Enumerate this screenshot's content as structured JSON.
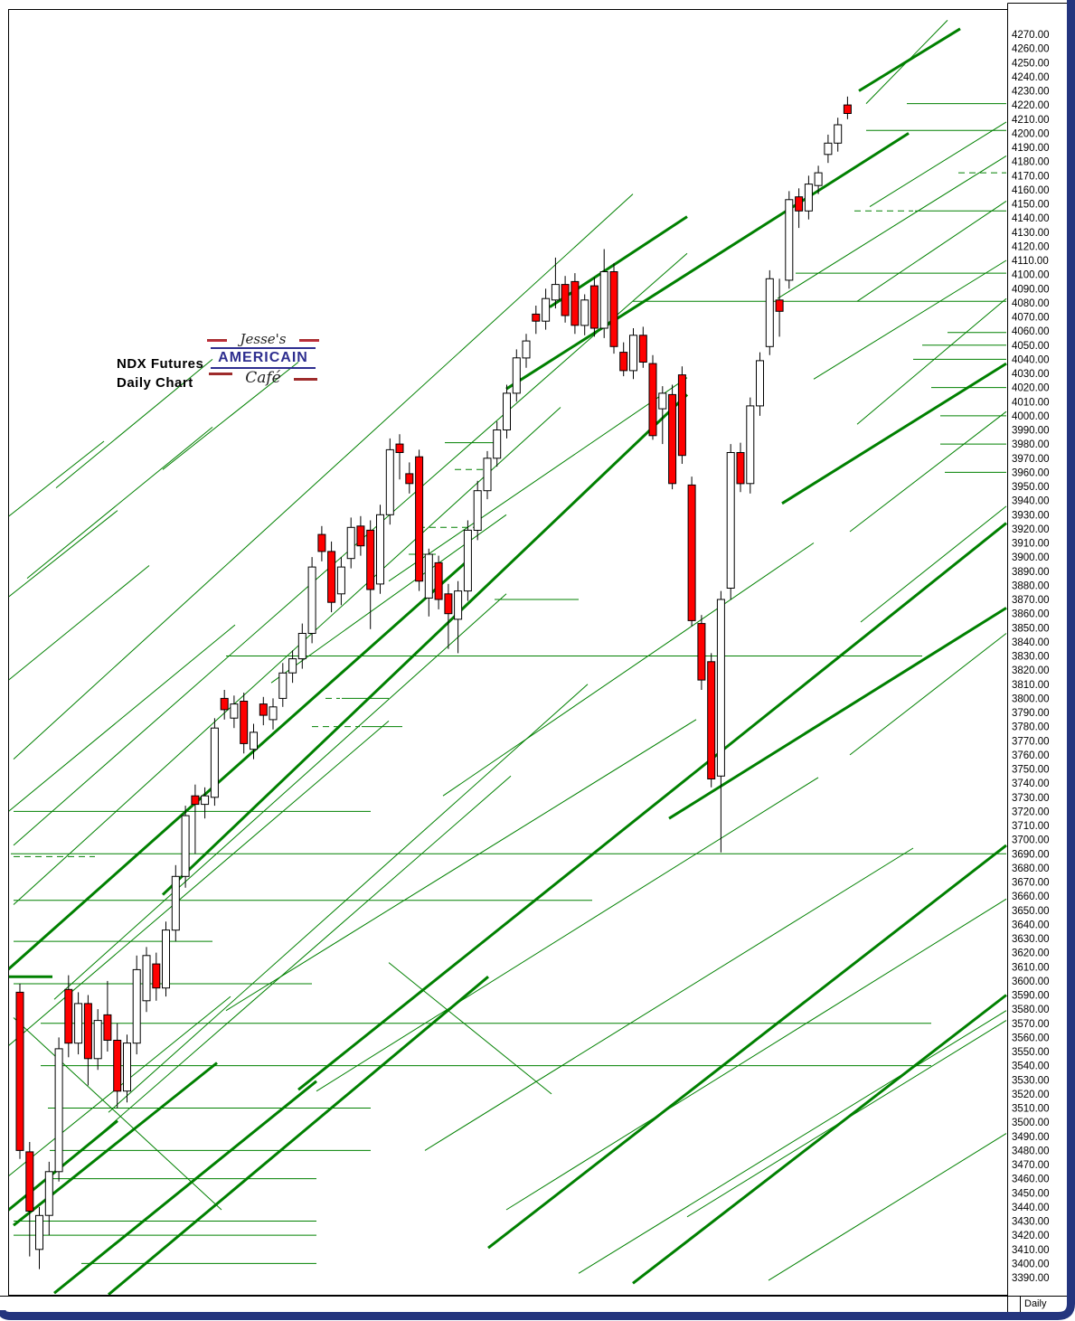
{
  "header": {
    "title": "NDX  Futures",
    "subtitle": "Daily Chart"
  },
  "logo": {
    "top": "Jesse's",
    "middle": "AMERICAIN",
    "bottom": "Café"
  },
  "footer": {
    "timeframe_label": "Daily"
  },
  "colors": {
    "line_green": "#008000",
    "candle_up": "#ffffff",
    "candle_down": "#ff0000",
    "candle_outline": "#000000",
    "frame_navy": "#24357e",
    "axis_text": "#000000",
    "logo_navy": "#2e2e8f",
    "logo_red": "#9e2b2b"
  },
  "chart_data": {
    "type": "candlestick",
    "title": "NDX  Futures",
    "subtitle": "Daily Chart",
    "timeframe": "Daily",
    "legend_position": "none",
    "grid": "horizontal-green-levels",
    "price_axis": {
      "side": "right",
      "min": 3390,
      "max": 4270,
      "step": 10,
      "tick_labels": [
        "4270.00",
        "4260.00",
        "4250.00",
        "4240.00",
        "4230.00",
        "4220.00",
        "4210.00",
        "4200.00",
        "4190.00",
        "4180.00",
        "4170.00",
        "4160.00",
        "4150.00",
        "4140.00",
        "4130.00",
        "4120.00",
        "4110.00",
        "4100.00",
        "4090.00",
        "4080.00",
        "4070.00",
        "4060.00",
        "4050.00",
        "4040.00",
        "4030.00",
        "4020.00",
        "4010.00",
        "4000.00",
        "3990.00",
        "3980.00",
        "3970.00",
        "3960.00",
        "3950.00",
        "3940.00",
        "3930.00",
        "3920.00",
        "3910.00",
        "3900.00",
        "3890.00",
        "3880.00",
        "3870.00",
        "3860.00",
        "3850.00",
        "3840.00",
        "3830.00",
        "3820.00",
        "3810.00",
        "3800.00",
        "3790.00",
        "3780.00",
        "3770.00",
        "3760.00",
        "3750.00",
        "3740.00",
        "3730.00",
        "3720.00",
        "3710.00",
        "3700.00",
        "3690.00",
        "3680.00",
        "3670.00",
        "3660.00",
        "3650.00",
        "3640.00",
        "3630.00",
        "3620.00",
        "3610.00",
        "3600.00",
        "3590.00",
        "3580.00",
        "3570.00",
        "3560.00",
        "3550.00",
        "3540.00",
        "3530.00",
        "3520.00",
        "3510.00",
        "3500.00",
        "3490.00",
        "3480.00",
        "3470.00",
        "3460.00",
        "3450.00",
        "3440.00",
        "3430.00",
        "3420.00",
        "3410.00",
        "3400.00",
        "3390.00"
      ]
    },
    "candles": [
      [
        3592,
        3598,
        3474,
        3480,
        "r"
      ],
      [
        3479,
        3486,
        3405,
        3437,
        "r"
      ],
      [
        3410,
        3440,
        3396,
        3434,
        "w"
      ],
      [
        3434,
        3472,
        3420,
        3465,
        "w"
      ],
      [
        3465,
        3560,
        3458,
        3552,
        "w"
      ],
      [
        3594,
        3604,
        3546,
        3556,
        "r"
      ],
      [
        3556,
        3592,
        3548,
        3584,
        "w"
      ],
      [
        3584,
        3590,
        3526,
        3545,
        "r"
      ],
      [
        3545,
        3580,
        3537,
        3572,
        "w"
      ],
      [
        3576,
        3600,
        3550,
        3558,
        "r"
      ],
      [
        3558,
        3570,
        3510,
        3522,
        "r"
      ],
      [
        3522,
        3562,
        3514,
        3556,
        "w"
      ],
      [
        3556,
        3618,
        3548,
        3608,
        "w"
      ],
      [
        3586,
        3624,
        3578,
        3618,
        "w"
      ],
      [
        3612,
        3620,
        3586,
        3595,
        "r"
      ],
      [
        3595,
        3642,
        3589,
        3636,
        "w"
      ],
      [
        3636,
        3682,
        3628,
        3674,
        "w"
      ],
      [
        3674,
        3724,
        3666,
        3717,
        "w"
      ],
      [
        3731,
        3739,
        3690,
        3725,
        "r"
      ],
      [
        3725,
        3737,
        3715,
        3731,
        "w"
      ],
      [
        3730,
        3786,
        3724,
        3779,
        "w"
      ],
      [
        3800,
        3806,
        3785,
        3792,
        "r"
      ],
      [
        3786,
        3802,
        3779,
        3796,
        "w"
      ],
      [
        3798,
        3804,
        3761,
        3768,
        "r"
      ],
      [
        3764,
        3782,
        3757,
        3776,
        "w"
      ],
      [
        3796,
        3801,
        3781,
        3788,
        "r"
      ],
      [
        3785,
        3800,
        3778,
        3794,
        "w"
      ],
      [
        3800,
        3825,
        3794,
        3818,
        "w"
      ],
      [
        3818,
        3834,
        3811,
        3828,
        "w"
      ],
      [
        3828,
        3853,
        3821,
        3846,
        "w"
      ],
      [
        3846,
        3900,
        3839,
        3893,
        "w"
      ],
      [
        3916,
        3922,
        3897,
        3904,
        "r"
      ],
      [
        3904,
        3911,
        3861,
        3868,
        "r"
      ],
      [
        3874,
        3900,
        3866,
        3893,
        "w"
      ],
      [
        3899,
        3928,
        3892,
        3921,
        "w"
      ],
      [
        3922,
        3929,
        3901,
        3908,
        "r"
      ],
      [
        3919,
        3926,
        3849,
        3877,
        "r"
      ],
      [
        3881,
        3937,
        3874,
        3930,
        "w"
      ],
      [
        3930,
        3984,
        3923,
        3976,
        "w"
      ],
      [
        3980,
        3987,
        3955,
        3974,
        "r"
      ],
      [
        3959,
        3967,
        3945,
        3952,
        "r"
      ],
      [
        3971,
        3976,
        3876,
        3883,
        "r"
      ],
      [
        3871,
        3906,
        3858,
        3902,
        "w"
      ],
      [
        3896,
        3901,
        3863,
        3870,
        "r"
      ],
      [
        3874,
        3881,
        3835,
        3860,
        "r"
      ],
      [
        3856,
        3883,
        3832,
        3876,
        "w"
      ],
      [
        3876,
        3926,
        3869,
        3919,
        "w"
      ],
      [
        3919,
        3954,
        3912,
        3947,
        "w"
      ],
      [
        3947,
        3975,
        3941,
        3970,
        "w"
      ],
      [
        3970,
        3996,
        3964,
        3990,
        "w"
      ],
      [
        3990,
        4022,
        3984,
        4016,
        "w"
      ],
      [
        4016,
        4047,
        4010,
        4041,
        "w"
      ],
      [
        4041,
        4058,
        4034,
        4053,
        "w"
      ],
      [
        4072,
        4078,
        4058,
        4067,
        "r"
      ],
      [
        4067,
        4090,
        4061,
        4083,
        "w"
      ],
      [
        4082,
        4112,
        4076,
        4093,
        "w"
      ],
      [
        4093,
        4099,
        4066,
        4071,
        "r"
      ],
      [
        4095,
        4101,
        4058,
        4064,
        "r"
      ],
      [
        4064,
        4086,
        4057,
        4082,
        "w"
      ],
      [
        4092,
        4098,
        4056,
        4062,
        "r"
      ],
      [
        4062,
        4118,
        4055,
        4102,
        "w"
      ],
      [
        4102,
        4108,
        4044,
        4049,
        "r"
      ],
      [
        4045,
        4052,
        4028,
        4032,
        "r"
      ],
      [
        4032,
        4062,
        4026,
        4057,
        "w"
      ],
      [
        4057,
        4063,
        4034,
        4038,
        "r"
      ],
      [
        4037,
        4043,
        3983,
        3986,
        "r"
      ],
      [
        4005,
        4021,
        3980,
        4016,
        "w"
      ],
      [
        4015,
        4022,
        3948,
        3952,
        "r"
      ],
      [
        4029,
        4035,
        3966,
        3972,
        "r"
      ],
      [
        3951,
        3957,
        3851,
        3855,
        "r"
      ],
      [
        3853,
        3859,
        3806,
        3813,
        "r"
      ],
      [
        3826,
        3832,
        3737,
        3743,
        "r"
      ],
      [
        3745,
        3876,
        3691,
        3870,
        "w"
      ],
      [
        3878,
        3980,
        3870,
        3974,
        "w"
      ],
      [
        3974,
        3981,
        3946,
        3952,
        "r"
      ],
      [
        3952,
        4013,
        3945,
        4007,
        "w"
      ],
      [
        4007,
        4045,
        4000,
        4039,
        "w"
      ],
      [
        4049,
        4103,
        4043,
        4097,
        "w"
      ],
      [
        4082,
        4097,
        4056,
        4074,
        "r"
      ],
      [
        4096,
        4159,
        4090,
        4153,
        "w"
      ],
      [
        4155,
        4161,
        4133,
        4145,
        "r"
      ],
      [
        4145,
        4170,
        4139,
        4164,
        "w"
      ],
      [
        4163,
        4177,
        4157,
        4172,
        "w"
      ],
      [
        4185,
        4199,
        4179,
        4193,
        "w"
      ],
      [
        4193,
        4211,
        4187,
        4206,
        "w"
      ],
      [
        4220,
        4226,
        4210,
        4214,
        "r"
      ]
    ],
    "horizontal_lines": [
      [
        4221,
        1003,
        1113,
        1,
        0
      ],
      [
        4202,
        958,
        1113,
        1,
        0
      ],
      [
        4172,
        1060,
        1113,
        1,
        1
      ],
      [
        4145,
        1012,
        1113,
        1,
        0
      ],
      [
        4145,
        945,
        1010,
        1,
        1
      ],
      [
        4101,
        880,
        1113,
        1,
        0
      ],
      [
        4081,
        700,
        1113,
        1,
        0
      ],
      [
        4059,
        1048,
        1113,
        1,
        0
      ],
      [
        4050,
        1020,
        1113,
        1,
        0
      ],
      [
        4040,
        1010,
        1113,
        1,
        0
      ],
      [
        4020,
        1030,
        1113,
        1,
        0
      ],
      [
        4000,
        1040,
        1113,
        1,
        0
      ],
      [
        3980,
        1040,
        1113,
        1,
        0
      ],
      [
        3960,
        1045,
        1113,
        1,
        0
      ],
      [
        3981,
        492,
        548,
        1,
        0
      ],
      [
        3962,
        503,
        540,
        1,
        1
      ],
      [
        3921,
        463,
        525,
        1,
        1
      ],
      [
        3902,
        452,
        482,
        1,
        0
      ],
      [
        3870,
        547,
        640,
        1,
        0
      ],
      [
        3830,
        250,
        1020,
        1,
        0
      ],
      [
        3800,
        360,
        376,
        1,
        1
      ],
      [
        3800,
        378,
        430,
        1,
        0
      ],
      [
        3780,
        345,
        398,
        1,
        1
      ],
      [
        3780,
        400,
        445,
        1,
        0
      ],
      [
        3720,
        15,
        410,
        1,
        0
      ],
      [
        3690,
        12,
        1113,
        1,
        0
      ],
      [
        3688,
        15,
        105,
        1,
        1
      ],
      [
        3657,
        15,
        655,
        1,
        0
      ],
      [
        3628,
        15,
        235,
        1,
        0
      ],
      [
        3603,
        0,
        58,
        3,
        0
      ],
      [
        3598,
        15,
        345,
        1,
        0
      ],
      [
        3570,
        45,
        1030,
        1,
        0
      ],
      [
        3540,
        45,
        1030,
        1,
        0
      ],
      [
        3510,
        53,
        410,
        1,
        0
      ],
      [
        3480,
        55,
        410,
        1,
        0
      ],
      [
        3460,
        55,
        350,
        1,
        0
      ],
      [
        3430,
        15,
        350,
        1,
        0
      ],
      [
        3420,
        15,
        350,
        1,
        0
      ],
      [
        3400,
        90,
        350,
        1,
        0
      ]
    ],
    "trend_lines": [
      [
        0,
        3603,
        520,
        3899,
        3
      ],
      [
        60,
        3379,
        350,
        3529,
        3
      ],
      [
        120,
        3378,
        540,
        3603,
        3
      ],
      [
        15,
        3427,
        240,
        3542,
        3
      ],
      [
        180,
        3661,
        760,
        4015,
        3
      ],
      [
        330,
        3523,
        1113,
        3924,
        3
      ],
      [
        740,
        3715,
        1113,
        3864,
        3
      ],
      [
        865,
        3938,
        1113,
        4037,
        3
      ],
      [
        950,
        4230,
        1062,
        4274,
        3
      ],
      [
        560,
        4019,
        1005,
        4200,
        3
      ],
      [
        540,
        3411,
        1113,
        3696,
        3
      ],
      [
        700,
        3386,
        1113,
        3590,
        3
      ],
      [
        0,
        3433,
        130,
        3501,
        3
      ],
      [
        608,
        4077,
        760,
        4141,
        3
      ],
      [
        15,
        3757,
        700,
        4157,
        1
      ],
      [
        15,
        3696,
        760,
        4115,
        1
      ],
      [
        15,
        3654,
        620,
        4006,
        1
      ],
      [
        60,
        3587,
        560,
        3874,
        1
      ],
      [
        120,
        3507,
        650,
        3810,
        1
      ],
      [
        0,
        3808,
        165,
        3894,
        1
      ],
      [
        0,
        3867,
        130,
        3933,
        1
      ],
      [
        30,
        3885,
        235,
        3992,
        1
      ],
      [
        0,
        3924,
        115,
        3982,
        1
      ],
      [
        62,
        3949,
        235,
        4040,
        1
      ],
      [
        0,
        3715,
        260,
        3852,
        1
      ],
      [
        0,
        3549,
        430,
        3784,
        1
      ],
      [
        90,
        3480,
        565,
        3745,
        1
      ],
      [
        15,
        3574,
        245,
        3438,
        1
      ],
      [
        0,
        3457,
        255,
        3589,
        1
      ],
      [
        250,
        3579,
        770,
        3785,
        1
      ],
      [
        350,
        3522,
        905,
        3744,
        1
      ],
      [
        470,
        3480,
        1010,
        3694,
        1
      ],
      [
        560,
        3438,
        1113,
        3658,
        1
      ],
      [
        640,
        3393,
        1113,
        3579,
        1
      ],
      [
        760,
        3433,
        1113,
        3572,
        1
      ],
      [
        850,
        3388,
        1113,
        3492,
        1
      ],
      [
        860,
        4083,
        1113,
        4184,
        1
      ],
      [
        900,
        4026,
        1113,
        4110,
        1
      ],
      [
        948,
        4081,
        1113,
        4152,
        1
      ],
      [
        948,
        3994,
        1113,
        4083,
        1
      ],
      [
        940,
        3918,
        1113,
        4003,
        1
      ],
      [
        952,
        3854,
        1113,
        3936,
        1
      ],
      [
        940,
        3760,
        1113,
        3846,
        1
      ],
      [
        962,
        4148,
        1113,
        4208,
        1
      ],
      [
        958,
        4221,
        1048,
        4280,
        1
      ],
      [
        430,
        3883,
        760,
        4027,
        1
      ],
      [
        300,
        3811,
        560,
        3930,
        1
      ],
      [
        490,
        3731,
        900,
        3910,
        1
      ],
      [
        180,
        3962,
        330,
        4038,
        1
      ],
      [
        430,
        3613,
        610,
        3520,
        1
      ]
    ]
  }
}
